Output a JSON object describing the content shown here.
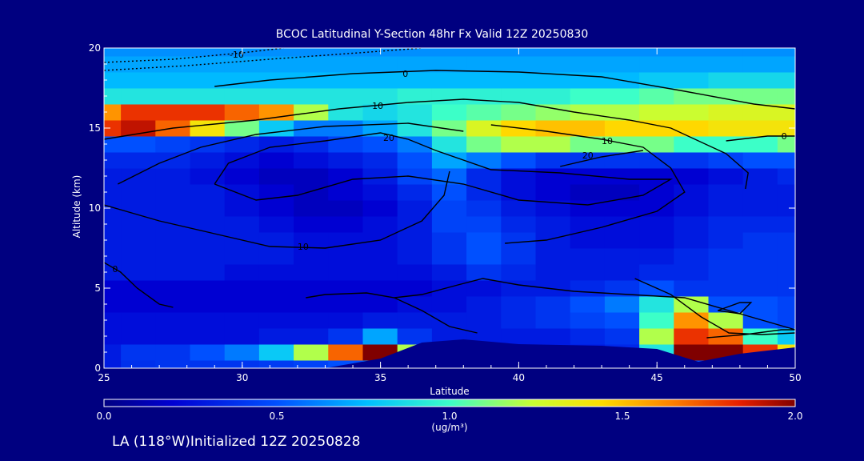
{
  "chart_data": {
    "type": "heatmap",
    "title": "BCOC Latitudinal Y-Section 48hr  Fx Valid 12Z 20250830",
    "xlabel": "Latitude",
    "ylabel": "Altitude (km)",
    "xlim": [
      25,
      50
    ],
    "ylim": [
      0,
      20
    ],
    "x_ticks": [
      "25",
      "30",
      "35",
      "40",
      "45",
      "50"
    ],
    "y_ticks": [
      "0",
      "5",
      "10",
      "15",
      "20"
    ],
    "x": [
      25,
      26.25,
      27.5,
      28.75,
      30,
      31.25,
      32.5,
      33.75,
      35,
      36.25,
      37.5,
      38.75,
      40,
      41.25,
      42.5,
      43.75,
      45,
      46.25,
      47.5,
      48.75,
      50
    ],
    "y": [
      0,
      1,
      2,
      3,
      4,
      5,
      6,
      7,
      8,
      9,
      10,
      11,
      12,
      13,
      14,
      15,
      16,
      17,
      18,
      19,
      20
    ],
    "z": [
      [
        0.3,
        0.38,
        0.4,
        0.4,
        0.4,
        0.42,
        0.45,
        0.5,
        0.6,
        0.5,
        0.45,
        0.4,
        0.4,
        0.4,
        0.4,
        0.4,
        0.45,
        0.5,
        0.6,
        0.5,
        0.5
      ],
      [
        0.3,
        0.4,
        0.4,
        0.5,
        0.6,
        0.8,
        1.2,
        1.7,
        2.0,
        1.2,
        0.5,
        0.3,
        0.3,
        0.3,
        0.3,
        0.35,
        0.9,
        2.0,
        2.0,
        1.8,
        1.4
      ],
      [
        0.25,
        0.25,
        0.25,
        0.25,
        0.25,
        0.3,
        0.3,
        0.4,
        0.7,
        0.4,
        0.3,
        0.3,
        0.3,
        0.3,
        0.35,
        0.4,
        1.2,
        1.8,
        1.7,
        1.0,
        0.8
      ],
      [
        0.25,
        0.25,
        0.25,
        0.25,
        0.25,
        0.25,
        0.25,
        0.25,
        0.3,
        0.3,
        0.3,
        0.3,
        0.35,
        0.4,
        0.45,
        0.5,
        1.0,
        1.6,
        1.2,
        0.5,
        0.45
      ],
      [
        0.2,
        0.2,
        0.2,
        0.2,
        0.2,
        0.2,
        0.2,
        0.2,
        0.2,
        0.25,
        0.25,
        0.3,
        0.35,
        0.4,
        0.5,
        0.6,
        0.9,
        1.2,
        0.5,
        0.5,
        0.45
      ],
      [
        0.2,
        0.2,
        0.2,
        0.2,
        0.2,
        0.2,
        0.2,
        0.2,
        0.2,
        0.2,
        0.25,
        0.25,
        0.3,
        0.3,
        0.35,
        0.4,
        0.5,
        0.4,
        0.4,
        0.4,
        0.4
      ],
      [
        0.3,
        0.3,
        0.3,
        0.3,
        0.25,
        0.25,
        0.25,
        0.25,
        0.25,
        0.25,
        0.3,
        0.4,
        0.35,
        0.3,
        0.3,
        0.3,
        0.35,
        0.35,
        0.4,
        0.4,
        0.4
      ],
      [
        0.3,
        0.3,
        0.3,
        0.3,
        0.3,
        0.3,
        0.25,
        0.25,
        0.25,
        0.3,
        0.4,
        0.5,
        0.4,
        0.3,
        0.3,
        0.3,
        0.3,
        0.35,
        0.4,
        0.4,
        0.4
      ],
      [
        0.3,
        0.3,
        0.3,
        0.3,
        0.3,
        0.3,
        0.25,
        0.25,
        0.25,
        0.3,
        0.4,
        0.5,
        0.4,
        0.3,
        0.25,
        0.25,
        0.25,
        0.3,
        0.35,
        0.4,
        0.4
      ],
      [
        0.3,
        0.3,
        0.3,
        0.3,
        0.3,
        0.25,
        0.2,
        0.2,
        0.25,
        0.3,
        0.45,
        0.45,
        0.35,
        0.3,
        0.25,
        0.25,
        0.25,
        0.3,
        0.35,
        0.35,
        0.35
      ],
      [
        0.3,
        0.3,
        0.3,
        0.3,
        0.25,
        0.2,
        0.15,
        0.15,
        0.2,
        0.3,
        0.45,
        0.4,
        0.3,
        0.25,
        0.2,
        0.2,
        0.2,
        0.25,
        0.3,
        0.3,
        0.3
      ],
      [
        0.3,
        0.3,
        0.3,
        0.3,
        0.25,
        0.2,
        0.15,
        0.2,
        0.25,
        0.35,
        0.5,
        0.35,
        0.25,
        0.2,
        0.15,
        0.15,
        0.2,
        0.25,
        0.3,
        0.3,
        0.3
      ],
      [
        0.3,
        0.3,
        0.3,
        0.25,
        0.2,
        0.15,
        0.15,
        0.2,
        0.3,
        0.45,
        0.55,
        0.35,
        0.25,
        0.2,
        0.2,
        0.2,
        0.2,
        0.2,
        0.25,
        0.3,
        0.35
      ],
      [
        0.35,
        0.35,
        0.35,
        0.3,
        0.25,
        0.2,
        0.25,
        0.3,
        0.35,
        0.5,
        0.7,
        0.6,
        0.5,
        0.4,
        0.4,
        0.4,
        0.4,
        0.4,
        0.45,
        0.5,
        0.5
      ],
      [
        0.5,
        0.5,
        0.45,
        0.4,
        0.35,
        0.3,
        0.35,
        0.45,
        0.5,
        0.6,
        0.9,
        1.1,
        1.2,
        1.2,
        1.1,
        1.1,
        1.1,
        1.0,
        1.0,
        1.0,
        1.1
      ],
      [
        1.8,
        1.9,
        1.7,
        1.4,
        1.1,
        0.8,
        0.6,
        0.6,
        0.7,
        0.9,
        1.1,
        1.3,
        1.45,
        1.5,
        1.5,
        1.45,
        1.45,
        1.45,
        1.4,
        1.4,
        1.4
      ],
      [
        1.6,
        1.8,
        1.8,
        1.8,
        1.7,
        1.6,
        1.2,
        0.9,
        0.85,
        0.9,
        1.0,
        1.05,
        1.1,
        1.15,
        1.2,
        1.2,
        1.25,
        1.25,
        1.3,
        1.3,
        1.3
      ],
      [
        0.9,
        0.9,
        0.9,
        0.9,
        0.9,
        0.9,
        0.9,
        0.9,
        0.9,
        0.95,
        0.95,
        0.95,
        0.95,
        0.95,
        1.0,
        1.0,
        1.05,
        1.1,
        1.1,
        1.1,
        1.1
      ],
      [
        0.75,
        0.75,
        0.75,
        0.75,
        0.75,
        0.75,
        0.75,
        0.75,
        0.75,
        0.75,
        0.75,
        0.75,
        0.75,
        0.75,
        0.75,
        0.75,
        0.8,
        0.8,
        0.85,
        0.85,
        0.85
      ],
      [
        0.7,
        0.7,
        0.7,
        0.7,
        0.7,
        0.7,
        0.7,
        0.7,
        0.7,
        0.7,
        0.7,
        0.7,
        0.7,
        0.7,
        0.7,
        0.7,
        0.7,
        0.7,
        0.7,
        0.7,
        0.7
      ],
      [
        0.65,
        0.65,
        0.65,
        0.65,
        0.65,
        0.65,
        0.65,
        0.65,
        0.65,
        0.65,
        0.65,
        0.65,
        0.65,
        0.65,
        0.65,
        0.65,
        0.65,
        0.65,
        0.65,
        0.65,
        0.65
      ]
    ],
    "terrain": {
      "x": [
        25,
        33,
        35,
        36.5,
        38,
        40,
        43,
        45,
        46.5,
        48,
        50
      ],
      "y": [
        0,
        0,
        0.6,
        1.6,
        1.8,
        1.5,
        1.4,
        1.2,
        0.4,
        0.9,
        1.3
      ]
    },
    "contours": [
      {
        "label": "-10",
        "dash": true,
        "label_at": [
          29.8,
          19.6
        ],
        "points": [
          [
            25,
            19.1
          ],
          [
            27.5,
            19.3
          ],
          [
            30,
            19.7
          ],
          [
            31.5,
            20
          ]
        ]
      },
      {
        "label": "",
        "dash": true,
        "label_at": null,
        "points": [
          [
            25,
            18.6
          ],
          [
            28,
            18.9
          ],
          [
            31,
            19.3
          ],
          [
            35,
            19.8
          ],
          [
            36.5,
            20
          ]
        ]
      },
      {
        "label": "0",
        "dash": false,
        "label_at": [
          35.9,
          18.4
        ],
        "points": [
          [
            29,
            17.6
          ],
          [
            31,
            18.0
          ],
          [
            34,
            18.4
          ],
          [
            37,
            18.6
          ],
          [
            40,
            18.5
          ],
          [
            43,
            18.2
          ],
          [
            46,
            17.3
          ],
          [
            48.5,
            16.5
          ],
          [
            50,
            16.2
          ]
        ]
      },
      {
        "label": "0",
        "dash": false,
        "label_at": [
          49.6,
          14.5
        ],
        "points": [
          [
            47.5,
            14.2
          ],
          [
            49,
            14.5
          ],
          [
            50,
            14.5
          ]
        ]
      },
      {
        "label": "10",
        "dash": false,
        "label_at": [
          34.9,
          16.4
        ],
        "points": [
          [
            25,
            14.3
          ],
          [
            27.5,
            15.0
          ],
          [
            30.5,
            15.5
          ],
          [
            33.5,
            16.2
          ],
          [
            36,
            16.6
          ],
          [
            38,
            16.8
          ],
          [
            40,
            16.6
          ],
          [
            42,
            16.0
          ],
          [
            44,
            15.5
          ],
          [
            45.5,
            15.0
          ],
          [
            47.5,
            13.4
          ],
          [
            48.3,
            12.2
          ],
          [
            48.2,
            11.2
          ]
        ]
      },
      {
        "label": "10",
        "dash": false,
        "label_at": [
          43.2,
          14.2
        ],
        "points": [
          [
            39,
            15.2
          ],
          [
            41,
            14.8
          ],
          [
            43,
            14.3
          ],
          [
            44.5,
            13.8
          ],
          [
            45.5,
            12.5
          ],
          [
            46,
            11.0
          ],
          [
            45,
            9.8
          ],
          [
            43,
            8.8
          ],
          [
            41,
            8.0
          ],
          [
            39.5,
            7.8
          ]
        ]
      },
      {
        "label": "20",
        "dash": false,
        "label_at": [
          35.3,
          14.4
        ],
        "points": [
          [
            29,
            11.5
          ],
          [
            29.5,
            12.8
          ],
          [
            31,
            13.8
          ],
          [
            33,
            14.2
          ],
          [
            35,
            14.7
          ],
          [
            36,
            14.3
          ],
          [
            37,
            13.6
          ],
          [
            39,
            12.4
          ],
          [
            41.5,
            12.2
          ],
          [
            44,
            11.8
          ],
          [
            45.5,
            11.8
          ],
          [
            44.5,
            10.8
          ],
          [
            42.5,
            10.2
          ],
          [
            40,
            10.5
          ],
          [
            38,
            11.5
          ],
          [
            36,
            12.0
          ],
          [
            34,
            11.8
          ],
          [
            32,
            10.8
          ],
          [
            30.5,
            10.5
          ],
          [
            29,
            11.5
          ]
        ]
      },
      {
        "label": "20",
        "dash": false,
        "label_at": [
          42.5,
          13.3
        ],
        "points": [
          [
            41.5,
            12.6
          ],
          [
            43,
            13.2
          ],
          [
            44.5,
            13.6
          ]
        ]
      },
      {
        "label": "10",
        "dash": false,
        "label_at": [
          32.2,
          7.6
        ],
        "points": [
          [
            25,
            10.2
          ],
          [
            27,
            9.2
          ],
          [
            29,
            8.4
          ],
          [
            31,
            7.6
          ],
          [
            33,
            7.5
          ],
          [
            35,
            8.0
          ],
          [
            36.5,
            9.2
          ],
          [
            37.3,
            10.8
          ],
          [
            37.5,
            12.3
          ]
        ]
      },
      {
        "label": "0",
        "dash": false,
        "label_at": [
          25.4,
          6.2
        ],
        "points": [
          [
            25,
            6.6
          ],
          [
            25.6,
            6.0
          ],
          [
            26.2,
            5.0
          ],
          [
            27,
            4.0
          ],
          [
            27.5,
            3.8
          ]
        ]
      },
      {
        "label": "",
        "dash": false,
        "label_at": null,
        "points": [
          [
            25.5,
            11.5
          ],
          [
            27,
            12.8
          ],
          [
            28.5,
            13.8
          ],
          [
            30.5,
            14.6
          ],
          [
            33,
            15.1
          ],
          [
            36,
            15.3
          ],
          [
            38,
            14.8
          ]
        ]
      },
      {
        "label": "",
        "dash": false,
        "label_at": null,
        "points": [
          [
            35.5,
            4.4
          ],
          [
            36.5,
            4.6
          ],
          [
            37.8,
            5.2
          ],
          [
            38.7,
            5.6
          ],
          [
            40,
            5.2
          ],
          [
            42,
            4.8
          ],
          [
            44,
            4.6
          ],
          [
            46,
            4.4
          ],
          [
            48,
            3.4
          ],
          [
            50,
            2.4
          ]
        ]
      },
      {
        "label": "",
        "dash": false,
        "label_at": null,
        "points": [
          [
            32.3,
            4.4
          ],
          [
            33,
            4.6
          ],
          [
            34.5,
            4.7
          ],
          [
            35.5,
            4.4
          ],
          [
            36.5,
            3.6
          ],
          [
            37.5,
            2.6
          ],
          [
            38.5,
            2.2
          ]
        ]
      },
      {
        "label": "",
        "dash": false,
        "label_at": null,
        "points": [
          [
            44.2,
            5.6
          ],
          [
            45.5,
            4.6
          ],
          [
            46.6,
            3.2
          ],
          [
            47.6,
            2.2
          ],
          [
            48.8,
            2.1
          ],
          [
            50,
            2.2
          ]
        ]
      },
      {
        "label": "",
        "dash": false,
        "label_at": null,
        "points": [
          [
            47.2,
            3.6
          ],
          [
            48,
            4.1
          ],
          [
            48.4,
            4.1
          ],
          [
            48,
            3.4
          ],
          [
            47.2,
            3.6
          ]
        ]
      },
      {
        "label": "",
        "dash": false,
        "label_at": null,
        "points": [
          [
            46.8,
            1.9
          ],
          [
            48.2,
            2.1
          ],
          [
            49.5,
            2.4
          ],
          [
            50,
            2.4
          ]
        ]
      }
    ],
    "colorbar": {
      "min": 0,
      "max": 2,
      "ticks": [
        "0.0",
        "0.5",
        "1.0",
        "1.5",
        "2.0"
      ],
      "unit": "(ug/m³)"
    },
    "colors": {
      "background": "#000080",
      "terrain": "#00008c",
      "contour": "#000000",
      "axis": "#ffffff"
    }
  },
  "footer": "LA (118°W)Initialized 12Z 20250828"
}
